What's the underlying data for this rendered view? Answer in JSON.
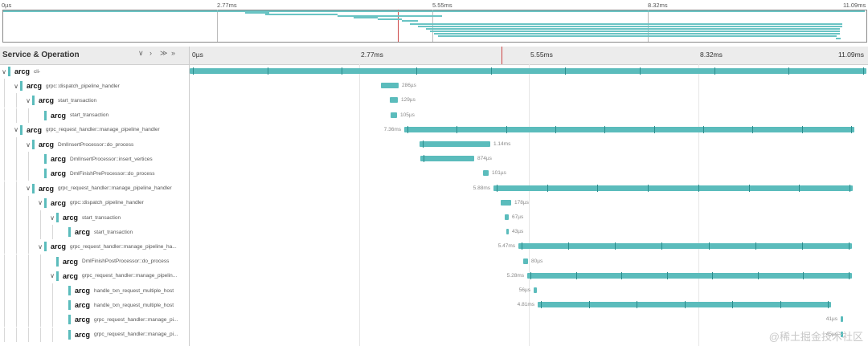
{
  "minimap": {
    "ticks": [
      "0µs",
      "2.77ms",
      "5.55ms",
      "8.32ms",
      "11.09ms"
    ]
  },
  "header": {
    "title": "Service & Operation",
    "controls": [
      "∨",
      "›",
      "≫",
      "»"
    ],
    "ticks": [
      "0µs",
      "2.77ms",
      "5.55ms",
      "8.32ms",
      "11.09ms"
    ]
  },
  "accent_color": "#5bbcbc",
  "rows": [
    {
      "service": "arcg",
      "operation": "cli-",
      "duration": ""
    },
    {
      "service": "arcg",
      "operation": "grpc::dispatch_pipeline_handler",
      "duration": "286µs"
    },
    {
      "service": "arcg",
      "operation": "start_transaction",
      "duration": "129µs"
    },
    {
      "service": "arcg",
      "operation": "start_transaction",
      "duration": "105µs"
    },
    {
      "service": "arcg",
      "operation": "grpc_request_handler::manage_pipeline_handler",
      "duration": "7.36ms"
    },
    {
      "service": "arcg",
      "operation": "DmlInsertProcessor::do_process",
      "duration": "1.14ms"
    },
    {
      "service": "arcg",
      "operation": "DmlInsertProcessor::insert_vertices",
      "duration": "874µs"
    },
    {
      "service": "arcg",
      "operation": "DmlFinishPreProcessor::do_process",
      "duration": "101µs"
    },
    {
      "service": "arcg",
      "operation": "grpc_request_handler::manage_pipeline_handler",
      "duration": "5.88ms"
    },
    {
      "service": "arcg",
      "operation": "grpc::dispatch_pipeline_handler",
      "duration": "178µs"
    },
    {
      "service": "arcg",
      "operation": "start_transaction",
      "duration": "67µs"
    },
    {
      "service": "arcg",
      "operation": "start_transaction",
      "duration": "43µs"
    },
    {
      "service": "arcg",
      "operation": "grpc_request_handler::manage_pipeline_ha...",
      "duration": "5.47ms"
    },
    {
      "service": "arcg",
      "operation": "DmlFinishPostProcessor::do_process",
      "duration": "80µs"
    },
    {
      "service": "arcg",
      "operation": "grpc_request_handler::manage_pipelin...",
      "duration": "5.28ms"
    },
    {
      "service": "arcg",
      "operation": "handle_txn_request_multiple_host",
      "duration": "56µs"
    },
    {
      "service": "arcg",
      "operation": "handle_txn_request_multiple_host",
      "duration": "4.81ms"
    },
    {
      "service": "arcg",
      "operation": "grpc_request_handler::manage_pi...",
      "duration": "41µs"
    },
    {
      "service": "arcg",
      "operation": "grpc_request_handler::manage_pi...",
      "duration": "45µs"
    }
  ],
  "watermark": "@稀土掘金技术社区"
}
